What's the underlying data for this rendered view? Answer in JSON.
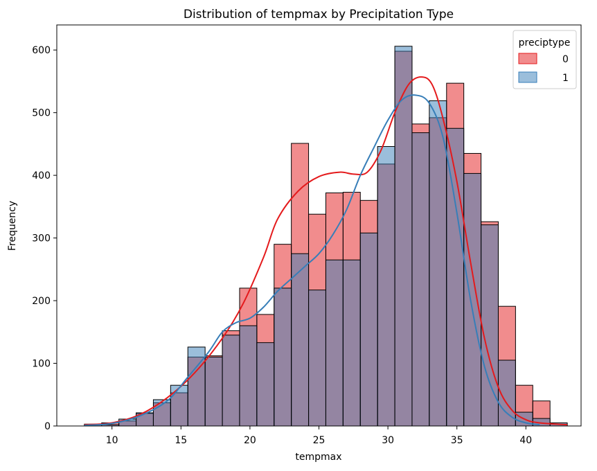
{
  "chart_data": {
    "type": "histogram",
    "title": "Distribution of tempmax by Precipitation Type",
    "xlabel": "tempmax",
    "ylabel": "Frequency",
    "xlim": [
      6,
      44
    ],
    "ylim": [
      0,
      640
    ],
    "xticks": [
      10,
      15,
      20,
      25,
      30,
      35,
      40
    ],
    "yticks": [
      0,
      100,
      200,
      300,
      400,
      500,
      600
    ],
    "bin_start": 8.0,
    "bin_width": 1.25,
    "legend": {
      "title": "preciptype",
      "position": "top-right"
    },
    "series": [
      {
        "name": "0",
        "color": "#e41a1c",
        "values": [
          2,
          5,
          8,
          20,
          37,
          53,
          110,
          112,
          152,
          220,
          178,
          290,
          451,
          338,
          372,
          373,
          360,
          418,
          598,
          482,
          492,
          547,
          435,
          326,
          191,
          65,
          40,
          3
        ],
        "kde": [
          [
            8,
            2
          ],
          [
            10,
            5
          ],
          [
            12,
            18
          ],
          [
            14,
            45
          ],
          [
            16,
            85
          ],
          [
            18,
            140
          ],
          [
            19.5,
            195
          ],
          [
            21,
            270
          ],
          [
            22,
            330
          ],
          [
            23.5,
            375
          ],
          [
            25,
            398
          ],
          [
            26.5,
            405
          ],
          [
            27.5,
            402
          ],
          [
            28.5,
            405
          ],
          [
            29.5,
            440
          ],
          [
            30.5,
            500
          ],
          [
            31.5,
            545
          ],
          [
            32.4,
            557
          ],
          [
            33.2,
            545
          ],
          [
            34,
            490
          ],
          [
            35,
            390
          ],
          [
            36,
            260
          ],
          [
            37,
            140
          ],
          [
            38,
            62
          ],
          [
            39,
            25
          ],
          [
            40,
            10
          ],
          [
            41,
            5
          ],
          [
            43,
            2
          ]
        ]
      },
      {
        "name": "1",
        "color": "#377eb8",
        "values": [
          3,
          2,
          11,
          21,
          42,
          65,
          126,
          110,
          145,
          160,
          133,
          220,
          275,
          217,
          265,
          265,
          308,
          446,
          606,
          468,
          519,
          475,
          403,
          321,
          105,
          22,
          12,
          5
        ],
        "kde": [
          [
            8,
            1
          ],
          [
            10,
            4
          ],
          [
            12,
            16
          ],
          [
            14,
            40
          ],
          [
            15.5,
            78
          ],
          [
            17,
            118
          ],
          [
            18,
            150
          ],
          [
            19,
            165
          ],
          [
            20,
            172
          ],
          [
            21,
            190
          ],
          [
            22,
            215
          ],
          [
            23,
            235
          ],
          [
            24,
            255
          ],
          [
            25,
            275
          ],
          [
            26,
            305
          ],
          [
            27,
            345
          ],
          [
            28,
            400
          ],
          [
            29,
            445
          ],
          [
            30,
            488
          ],
          [
            31,
            520
          ],
          [
            32,
            528
          ],
          [
            33,
            515
          ],
          [
            34,
            460
          ],
          [
            35,
            340
          ],
          [
            36,
            200
          ],
          [
            37,
            95
          ],
          [
            38,
            38
          ],
          [
            39,
            14
          ],
          [
            40,
            5
          ],
          [
            41,
            2
          ]
        ]
      }
    ]
  }
}
